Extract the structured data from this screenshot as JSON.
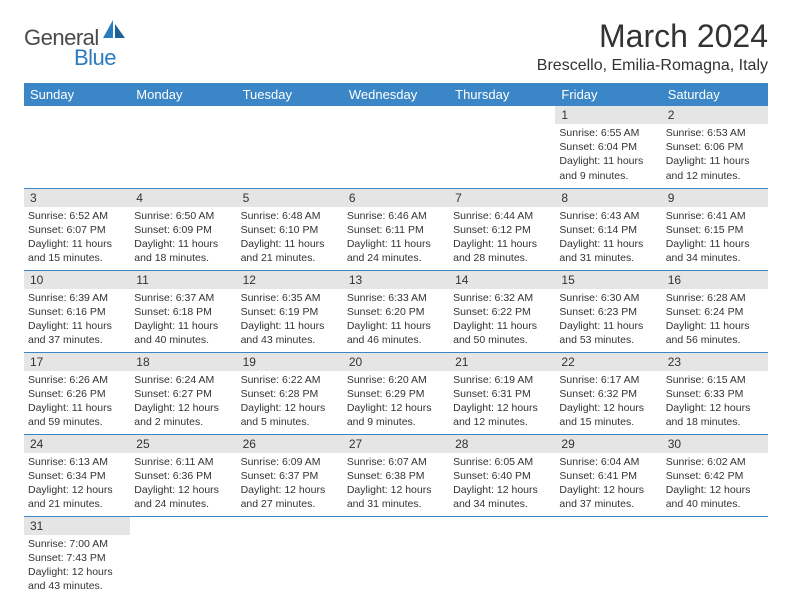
{
  "logo": {
    "text1": "General",
    "text2": "Blue"
  },
  "title": "March 2024",
  "location": "Brescello, Emilia-Romagna, Italy",
  "colors": {
    "headerBg": "#3b86c6",
    "headerText": "#ffffff",
    "dayBg": "#e5e5e5",
    "border": "#3b86c6",
    "logoBlue": "#2b7bbf",
    "logoGray": "#4a4a4a",
    "text": "#333333",
    "bg": "#ffffff"
  },
  "weekdays": [
    "Sunday",
    "Monday",
    "Tuesday",
    "Wednesday",
    "Thursday",
    "Friday",
    "Saturday"
  ],
  "weeks": [
    [
      null,
      null,
      null,
      null,
      null,
      {
        "d": "1",
        "sr": "6:55 AM",
        "ss": "6:04 PM",
        "dl": "11 hours and 9 minutes."
      },
      {
        "d": "2",
        "sr": "6:53 AM",
        "ss": "6:06 PM",
        "dl": "11 hours and 12 minutes."
      }
    ],
    [
      {
        "d": "3",
        "sr": "6:52 AM",
        "ss": "6:07 PM",
        "dl": "11 hours and 15 minutes."
      },
      {
        "d": "4",
        "sr": "6:50 AM",
        "ss": "6:09 PM",
        "dl": "11 hours and 18 minutes."
      },
      {
        "d": "5",
        "sr": "6:48 AM",
        "ss": "6:10 PM",
        "dl": "11 hours and 21 minutes."
      },
      {
        "d": "6",
        "sr": "6:46 AM",
        "ss": "6:11 PM",
        "dl": "11 hours and 24 minutes."
      },
      {
        "d": "7",
        "sr": "6:44 AM",
        "ss": "6:12 PM",
        "dl": "11 hours and 28 minutes."
      },
      {
        "d": "8",
        "sr": "6:43 AM",
        "ss": "6:14 PM",
        "dl": "11 hours and 31 minutes."
      },
      {
        "d": "9",
        "sr": "6:41 AM",
        "ss": "6:15 PM",
        "dl": "11 hours and 34 minutes."
      }
    ],
    [
      {
        "d": "10",
        "sr": "6:39 AM",
        "ss": "6:16 PM",
        "dl": "11 hours and 37 minutes."
      },
      {
        "d": "11",
        "sr": "6:37 AM",
        "ss": "6:18 PM",
        "dl": "11 hours and 40 minutes."
      },
      {
        "d": "12",
        "sr": "6:35 AM",
        "ss": "6:19 PM",
        "dl": "11 hours and 43 minutes."
      },
      {
        "d": "13",
        "sr": "6:33 AM",
        "ss": "6:20 PM",
        "dl": "11 hours and 46 minutes."
      },
      {
        "d": "14",
        "sr": "6:32 AM",
        "ss": "6:22 PM",
        "dl": "11 hours and 50 minutes."
      },
      {
        "d": "15",
        "sr": "6:30 AM",
        "ss": "6:23 PM",
        "dl": "11 hours and 53 minutes."
      },
      {
        "d": "16",
        "sr": "6:28 AM",
        "ss": "6:24 PM",
        "dl": "11 hours and 56 minutes."
      }
    ],
    [
      {
        "d": "17",
        "sr": "6:26 AM",
        "ss": "6:26 PM",
        "dl": "11 hours and 59 minutes."
      },
      {
        "d": "18",
        "sr": "6:24 AM",
        "ss": "6:27 PM",
        "dl": "12 hours and 2 minutes."
      },
      {
        "d": "19",
        "sr": "6:22 AM",
        "ss": "6:28 PM",
        "dl": "12 hours and 5 minutes."
      },
      {
        "d": "20",
        "sr": "6:20 AM",
        "ss": "6:29 PM",
        "dl": "12 hours and 9 minutes."
      },
      {
        "d": "21",
        "sr": "6:19 AM",
        "ss": "6:31 PM",
        "dl": "12 hours and 12 minutes."
      },
      {
        "d": "22",
        "sr": "6:17 AM",
        "ss": "6:32 PM",
        "dl": "12 hours and 15 minutes."
      },
      {
        "d": "23",
        "sr": "6:15 AM",
        "ss": "6:33 PM",
        "dl": "12 hours and 18 minutes."
      }
    ],
    [
      {
        "d": "24",
        "sr": "6:13 AM",
        "ss": "6:34 PM",
        "dl": "12 hours and 21 minutes."
      },
      {
        "d": "25",
        "sr": "6:11 AM",
        "ss": "6:36 PM",
        "dl": "12 hours and 24 minutes."
      },
      {
        "d": "26",
        "sr": "6:09 AM",
        "ss": "6:37 PM",
        "dl": "12 hours and 27 minutes."
      },
      {
        "d": "27",
        "sr": "6:07 AM",
        "ss": "6:38 PM",
        "dl": "12 hours and 31 minutes."
      },
      {
        "d": "28",
        "sr": "6:05 AM",
        "ss": "6:40 PM",
        "dl": "12 hours and 34 minutes."
      },
      {
        "d": "29",
        "sr": "6:04 AM",
        "ss": "6:41 PM",
        "dl": "12 hours and 37 minutes."
      },
      {
        "d": "30",
        "sr": "6:02 AM",
        "ss": "6:42 PM",
        "dl": "12 hours and 40 minutes."
      }
    ],
    [
      {
        "d": "31",
        "sr": "7:00 AM",
        "ss": "7:43 PM",
        "dl": "12 hours and 43 minutes."
      },
      null,
      null,
      null,
      null,
      null,
      null
    ]
  ],
  "labels": {
    "sunrise": "Sunrise:",
    "sunset": "Sunset:",
    "daylight": "Daylight:"
  }
}
